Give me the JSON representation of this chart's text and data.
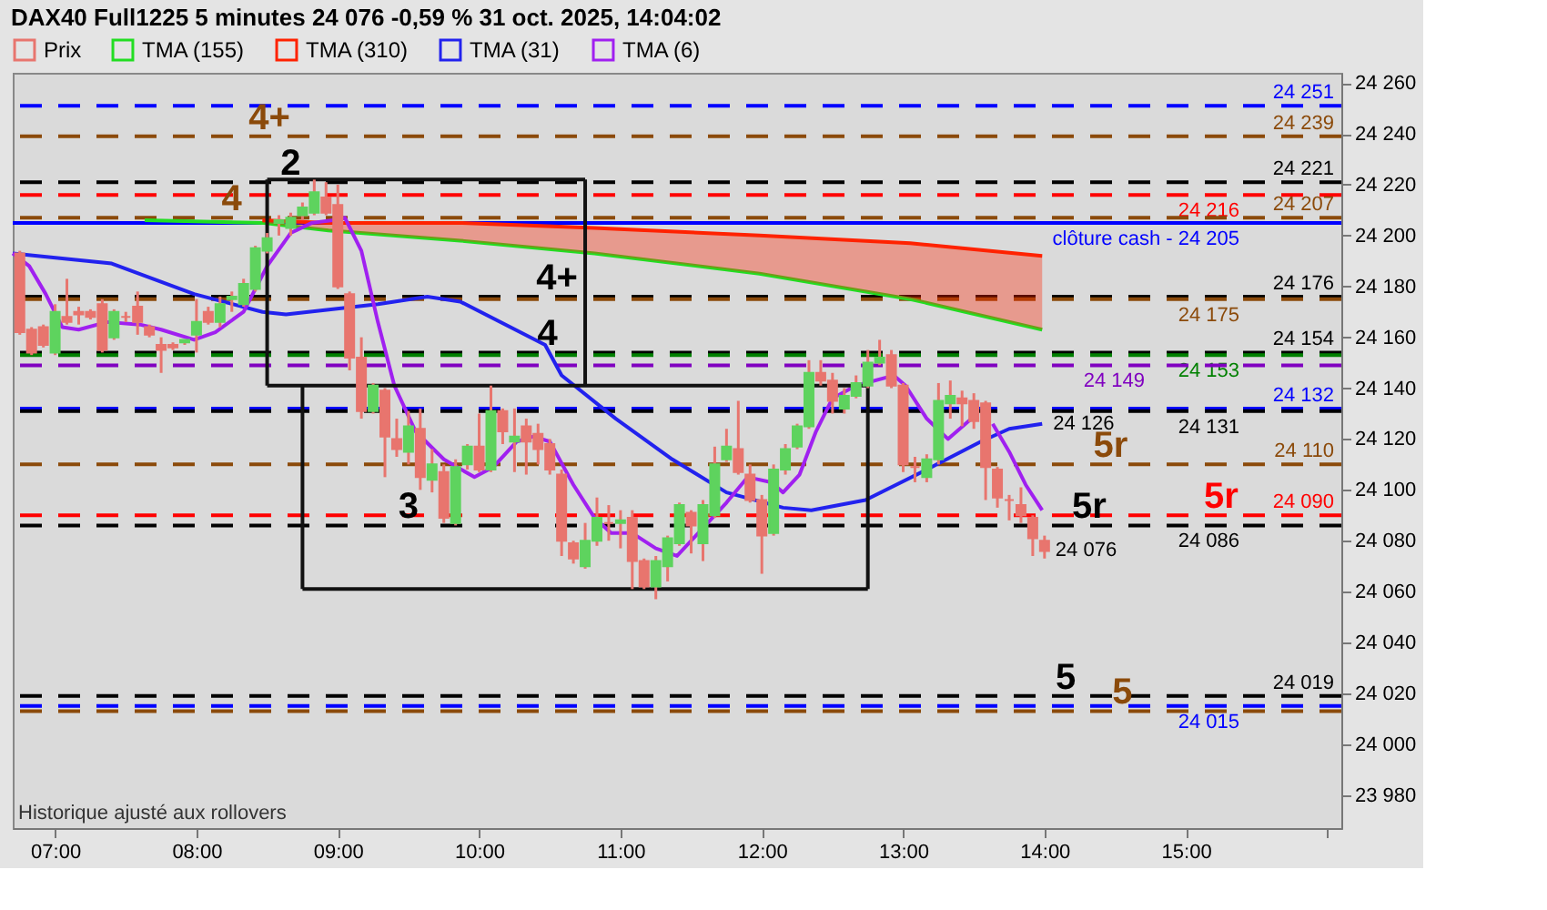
{
  "chart_data": {
    "type": "candlestick",
    "title": "DAX40 Full1225 5 minutes 24 076 -0,59 % 31 oct. 2025, 14:04:02",
    "legend": "top left",
    "xlim": [
      "2025-10-31T06:42",
      "2025-10-31T16:06"
    ],
    "xticks": [
      {
        "value": "2025-10-31T07:00",
        "label": "07:00"
      },
      {
        "value": "2025-10-31T08:00",
        "label": "08:00"
      },
      {
        "value": "2025-10-31T09:00",
        "label": "09:00"
      },
      {
        "value": "2025-10-31T10:00",
        "label": "10:00"
      },
      {
        "value": "2025-10-31T11:00",
        "label": "11:00"
      },
      {
        "value": "2025-10-31T12:00",
        "label": "12:00"
      },
      {
        "value": "2025-10-31T13:00",
        "label": "13:00"
      },
      {
        "value": "2025-10-31T14:00",
        "label": "14:00"
      },
      {
        "value": "2025-10-31T15:00",
        "label": "15:00"
      },
      {
        "value": "2025-10-31T16:00",
        "label": null
      }
    ],
    "ylim": [
      23967,
      24264
    ],
    "yticks": [
      {
        "value": 23980,
        "label": "23 980"
      },
      {
        "value": 24000,
        "label": "24 000"
      },
      {
        "value": 24020,
        "label": "24 020"
      },
      {
        "value": 24040,
        "label": "24 040"
      },
      {
        "value": 24060,
        "label": "24 060"
      },
      {
        "value": 24080,
        "label": "24 080"
      },
      {
        "value": 24100,
        "label": "24 100"
      },
      {
        "value": 24120,
        "label": "24 120"
      },
      {
        "value": 24140,
        "label": "24 140"
      },
      {
        "value": 24160,
        "label": "24 160"
      },
      {
        "value": 24180,
        "label": "24 180"
      },
      {
        "value": 24200,
        "label": "24 200"
      },
      {
        "value": 24220,
        "label": "24 220"
      },
      {
        "value": 24240,
        "label": "24 240"
      },
      {
        "value": 24260,
        "label": "24 260"
      }
    ],
    "series": [
      {
        "name": "TMA (155)",
        "type": "line",
        "color": "#22dd22",
        "x": [
          "2025-10-31T07:38",
          "2025-10-31T08:28",
          "2025-10-31T08:56",
          "2025-10-31T09:52",
          "2025-10-31T10:49",
          "2025-10-31T11:59",
          "2025-10-31T13:03",
          "2025-10-31T13:59"
        ],
        "values": [
          24206,
          24205,
          24202,
          24198,
          24193,
          24185,
          24175,
          24163
        ]
      },
      {
        "name": "TMA (310)",
        "type": "line",
        "color": "#ff2200",
        "x": [
          "2025-10-31T08:28",
          "2025-10-31T08:56",
          "2025-10-31T09:52",
          "2025-10-31T10:49",
          "2025-10-31T11:59",
          "2025-10-31T13:03",
          "2025-10-31T13:59"
        ],
        "values": [
          24206,
          24205,
          24205,
          24203,
          24200,
          24197,
          24192
        ],
        "upper": [
          24206,
          24205,
          24205,
          24203,
          24200,
          24197,
          24192
        ],
        "lower": [
          24205,
          24202,
          24198,
          24193,
          24185,
          24175,
          24163
        ]
      },
      {
        "name": "TMA (31)",
        "type": "line",
        "color": "#2222ee",
        "x": [
          "2025-10-31T06:42",
          "2025-10-31T07:24",
          "2025-10-31T07:59",
          "2025-10-31T08:28",
          "2025-10-31T08:38",
          "2025-10-31T09:17",
          "2025-10-31T09:38",
          "2025-10-31T09:52",
          "2025-10-31T10:28",
          "2025-10-31T10:35",
          "2025-10-31T10:58",
          "2025-10-31T11:22",
          "2025-10-31T11:45",
          "2025-10-31T12:09",
          "2025-10-31T12:21",
          "2025-10-31T12:44",
          "2025-10-31T13:10",
          "2025-10-31T13:33",
          "2025-10-31T13:45",
          "2025-10-31T13:59"
        ],
        "values": [
          24193,
          24189,
          24177,
          24170,
          24169,
          24173,
          24176,
          24174,
          24157,
          24145,
          24128,
          24112,
          24099,
          24093,
          24092,
          24096,
          24108,
          24119,
          24124,
          24126
        ]
      },
      {
        "name": "TMA (6)",
        "type": "line",
        "color": "#a020f0",
        "x": [
          "2025-10-31T06:42",
          "2025-10-31T06:49",
          "2025-10-31T06:56",
          "2025-10-31T07:03",
          "2025-10-31T07:10",
          "2025-10-31T07:22",
          "2025-10-31T07:36",
          "2025-10-31T07:45",
          "2025-10-31T07:59",
          "2025-10-31T08:08",
          "2025-10-31T08:20",
          "2025-10-31T08:30",
          "2025-10-31T08:40",
          "2025-10-31T08:49",
          "2025-10-31T08:58",
          "2025-10-31T09:03",
          "2025-10-31T09:10",
          "2025-10-31T09:17",
          "2025-10-31T09:24",
          "2025-10-31T09:33",
          "2025-10-31T09:45",
          "2025-10-31T09:58",
          "2025-10-31T10:06",
          "2025-10-31T10:16",
          "2025-10-31T10:23",
          "2025-10-31T10:30",
          "2025-10-31T10:40",
          "2025-10-31T10:49",
          "2025-10-31T10:56",
          "2025-10-31T11:05",
          "2025-10-31T11:15",
          "2025-10-31T11:24",
          "2025-10-31T11:33",
          "2025-10-31T11:45",
          "2025-10-31T11:54",
          "2025-10-31T12:04",
          "2025-10-31T12:09",
          "2025-10-31T12:16",
          "2025-10-31T12:23",
          "2025-10-31T12:30",
          "2025-10-31T12:40",
          "2025-10-31T12:56",
          "2025-10-31T13:01",
          "2025-10-31T13:10",
          "2025-10-31T13:19",
          "2025-10-31T13:29",
          "2025-10-31T13:33",
          "2025-10-31T13:38",
          "2025-10-31T13:45",
          "2025-10-31T13:52",
          "2025-10-31T13:59"
        ],
        "values": [
          24193,
          24188,
          24177,
          24164,
          24163,
          24166,
          24165,
          24163,
          24159,
          24162,
          24170,
          24188,
          24201,
          24205,
          24206,
          24207,
          24194,
          24166,
          24141,
          24123,
          24112,
          24105,
          24109,
          24119,
          24121,
          24119,
          24102,
          24089,
          24083,
          24083,
          24077,
          24074,
          24083,
          24095,
          24105,
          24103,
          24099,
          24106,
          24123,
          24136,
          24141,
          24145,
          24141,
          24128,
          24120,
          24128,
          null,
          24126,
          24115,
          24102,
          24092
        ]
      },
      {
        "type": "line",
        "color": "#111111",
        "x": [
          "2025-10-31T08:30",
          "2025-10-31T10:45"
        ],
        "values": [
          24222,
          24222
        ]
      },
      {
        "type": "line",
        "color": "#111111",
        "x": [
          "2025-10-31T08:30",
          "2025-10-31T12:45"
        ],
        "values": [
          24141,
          24141
        ]
      },
      {
        "type": "line",
        "color": "#111111",
        "x": [
          "2025-10-31T08:30",
          "2025-10-31T08:30"
        ],
        "values": [
          24222,
          24141
        ]
      },
      {
        "type": "line",
        "color": "#111111",
        "x": [
          "2025-10-31T10:45",
          "2025-10-31T10:45"
        ],
        "values": [
          24222,
          24141
        ]
      },
      {
        "type": "line",
        "color": "#111111",
        "x": [
          "2025-10-31T08:45",
          "2025-10-31T12:45"
        ],
        "values": [
          24061,
          24061
        ]
      },
      {
        "type": "line",
        "color": "#111111",
        "x": [
          "2025-10-31T08:45",
          "2025-10-31T08:45"
        ],
        "values": [
          24141,
          24061
        ]
      },
      {
        "type": "line",
        "color": "#111111",
        "x": [
          "2025-10-31T12:45",
          "2025-10-31T12:45"
        ],
        "values": [
          24141,
          24061
        ]
      },
      {
        "name": "Prix",
        "color": "#e8756e",
        "x": [
          "2025-10-31T06:45",
          "2025-10-31T06:50",
          "2025-10-31T06:55",
          "2025-10-31T07:00",
          "2025-10-31T07:05",
          "2025-10-31T07:10",
          "2025-10-31T07:15",
          "2025-10-31T07:20",
          "2025-10-31T07:25",
          "2025-10-31T07:30",
          "2025-10-31T07:35",
          "2025-10-31T07:40",
          "2025-10-31T07:45",
          "2025-10-31T07:50",
          "2025-10-31T07:55",
          "2025-10-31T08:00",
          "2025-10-31T08:05",
          "2025-10-31T08:10",
          "2025-10-31T08:15",
          "2025-10-31T08:20",
          "2025-10-31T08:25",
          "2025-10-31T08:30",
          "2025-10-31T08:35",
          "2025-10-31T08:40",
          "2025-10-31T08:45",
          "2025-10-31T08:50",
          "2025-10-31T08:55",
          "2025-10-31T09:00",
          "2025-10-31T09:05",
          "2025-10-31T09:10",
          "2025-10-31T09:15",
          "2025-10-31T09:20",
          "2025-10-31T09:25",
          "2025-10-31T09:30",
          "2025-10-31T09:35",
          "2025-10-31T09:40",
          "2025-10-31T09:45",
          "2025-10-31T09:50",
          "2025-10-31T09:55",
          "2025-10-31T10:00",
          "2025-10-31T10:05",
          "2025-10-31T10:10",
          "2025-10-31T10:15",
          "2025-10-31T10:20",
          "2025-10-31T10:25",
          "2025-10-31T10:30",
          "2025-10-31T10:35",
          "2025-10-31T10:40",
          "2025-10-31T10:45",
          "2025-10-31T10:50",
          "2025-10-31T10:55",
          "2025-10-31T11:00",
          "2025-10-31T11:05",
          "2025-10-31T11:10",
          "2025-10-31T11:15",
          "2025-10-31T11:20",
          "2025-10-31T11:25",
          "2025-10-31T11:30",
          "2025-10-31T11:35",
          "2025-10-31T11:40",
          "2025-10-31T11:45",
          "2025-10-31T11:50",
          "2025-10-31T11:55",
          "2025-10-31T12:00",
          "2025-10-31T12:05",
          "2025-10-31T12:10",
          "2025-10-31T12:15",
          "2025-10-31T12:20",
          "2025-10-31T12:25",
          "2025-10-31T12:30",
          "2025-10-31T12:35",
          "2025-10-31T12:40",
          "2025-10-31T12:45",
          "2025-10-31T12:50",
          "2025-10-31T12:55",
          "2025-10-31T13:00",
          "2025-10-31T13:05",
          "2025-10-31T13:10",
          "2025-10-31T13:15",
          "2025-10-31T13:20",
          "2025-10-31T13:25",
          "2025-10-31T13:30",
          "2025-10-31T13:35",
          "2025-10-31T13:40",
          "2025-10-31T13:45",
          "2025-10-31T13:50",
          "2025-10-31T13:55",
          "2025-10-31T14:00"
        ],
        "ohlc": [
          [
            24193,
            24194,
            24161,
            24162
          ],
          [
            24163,
            24164,
            24153,
            24154
          ],
          [
            24164,
            24165,
            24156,
            24157
          ],
          [
            24154,
            24173,
            24153,
            24170
          ],
          [
            24168,
            24183,
            24165,
            24166
          ],
          [
            24170,
            24172,
            24165,
            24169
          ],
          [
            24170,
            24171,
            24167,
            24168
          ],
          [
            24173,
            24175,
            24154,
            24155
          ],
          [
            24160,
            24171,
            24159,
            24170
          ],
          [
            24168,
            24170,
            24166,
            24168
          ],
          [
            24172,
            24178,
            24161,
            24166
          ],
          [
            24164,
            24165,
            24160,
            24161
          ],
          [
            24157,
            24160,
            24146,
            24155
          ],
          [
            24157,
            24158,
            24155,
            24156
          ],
          [
            24158,
            24159,
            24157,
            24159
          ],
          [
            24161,
            24175,
            24154,
            24166
          ],
          [
            24170,
            24172,
            24165,
            24166
          ],
          [
            24166,
            24176,
            24164,
            24173
          ],
          [
            24175,
            24178,
            24170,
            24176
          ],
          [
            24173,
            24183,
            24172,
            24181
          ],
          [
            24179,
            24196,
            24178,
            24195
          ],
          [
            24194,
            24201,
            24193,
            24199
          ],
          [
            24205,
            24208,
            24200,
            24206
          ],
          [
            24203,
            24209,
            24200,
            24207
          ],
          [
            24208,
            24213,
            24206,
            24211
          ],
          [
            24209,
            24222,
            24208,
            24217
          ],
          [
            24215,
            24221,
            24208,
            24209
          ],
          [
            24212,
            24220,
            24179,
            24180
          ],
          [
            24177,
            24178,
            24147,
            24152
          ],
          [
            24152,
            24160,
            24128,
            24131
          ],
          [
            24131,
            24142,
            24130,
            24141
          ],
          [
            24139,
            24140,
            24105,
            24121
          ],
          [
            24120,
            24128,
            24113,
            24116
          ],
          [
            24115,
            24131,
            24110,
            24125
          ],
          [
            24124,
            24132,
            24100,
            24105
          ],
          [
            24104,
            24116,
            24099,
            24110
          ],
          [
            24107,
            24110,
            24087,
            24089
          ],
          [
            24087,
            24112,
            24086,
            24109
          ],
          [
            24110,
            24118,
            24108,
            24117
          ],
          [
            24117,
            24130,
            24107,
            24108
          ],
          [
            24108,
            24141,
            24107,
            24131
          ],
          [
            24131,
            24132,
            24118,
            24123
          ],
          [
            24119,
            24132,
            24107,
            24121
          ],
          [
            24125,
            24128,
            24106,
            24119
          ],
          [
            24122,
            24126,
            24110,
            24116
          ],
          [
            24118,
            24120,
            24106,
            24108
          ],
          [
            24106,
            24108,
            24074,
            24080
          ],
          [
            24079,
            24080,
            24071,
            24073
          ],
          [
            24070,
            24087,
            24069,
            24080
          ],
          [
            24080,
            24097,
            24078,
            24089
          ],
          [
            24087,
            24094,
            24080,
            24087
          ],
          [
            24087,
            24092,
            24077,
            24088
          ],
          [
            24089,
            24092,
            24061,
            24072
          ],
          [
            24072,
            24073,
            24061,
            24062
          ],
          [
            24062,
            24074,
            24057,
            24072
          ],
          [
            24070,
            24082,
            24064,
            24081
          ],
          [
            24079,
            24095,
            24078,
            24094
          ],
          [
            24091,
            24092,
            24075,
            24086
          ],
          [
            24079,
            24096,
            24072,
            24094
          ],
          [
            24090,
            24117,
            24089,
            24110
          ],
          [
            24112,
            24124,
            24111,
            24117
          ],
          [
            24116,
            24135,
            24106,
            24107
          ],
          [
            24106,
            24110,
            24095,
            24096
          ],
          [
            24096,
            24098,
            24067,
            24082
          ],
          [
            24083,
            24110,
            24082,
            24108
          ],
          [
            24108,
            24118,
            24106,
            24116
          ],
          [
            24117,
            24126,
            24116,
            24125
          ],
          [
            24125,
            24151,
            24124,
            24146
          ],
          [
            24146,
            24151,
            24141,
            24143
          ],
          [
            24143,
            24146,
            24130,
            24135
          ],
          [
            24132,
            24140,
            24130,
            24137
          ],
          [
            24137,
            24145,
            24136,
            24142
          ],
          [
            24141,
            24155,
            24140,
            24150
          ],
          [
            24150,
            24159,
            24149,
            24152
          ],
          [
            24153,
            24155,
            24140,
            24141
          ],
          [
            24141,
            24142,
            24107,
            24110
          ],
          [
            24109,
            24113,
            24103,
            24109
          ],
          [
            24105,
            24114,
            24103,
            24112
          ],
          [
            24112,
            24142,
            24110,
            24135
          ],
          [
            24134,
            24143,
            24128,
            24137
          ],
          [
            24136,
            24139,
            24125,
            24134
          ],
          [
            24135,
            24138,
            24124,
            24127
          ],
          [
            24134,
            24135,
            24096,
            24109
          ],
          [
            24108,
            24109,
            24093,
            24097
          ],
          [
            24096,
            24098,
            24088,
            24096
          ],
          [
            24094,
            24101,
            24087,
            24090
          ],
          [
            24089,
            24090,
            24074,
            24081
          ],
          [
            24080,
            24082,
            24073,
            24076
          ]
        ],
        "colors": [
          "#e8756e",
          "#e8756e",
          "#e8756e",
          "#5ed35e",
          "#e8756e",
          "#e8756e",
          "#e8756e",
          "#e8756e",
          "#5ed35e",
          "#e8756e",
          "#e8756e",
          "#e8756e",
          "#e8756e",
          "#e8756e",
          "#5ed35e",
          "#5ed35e",
          "#e8756e",
          "#5ed35e",
          "#5ed35e",
          "#5ed35e",
          "#5ed35e",
          "#5ed35e",
          "#5ed35e",
          "#5ed35e",
          "#5ed35e",
          "#5ed35e",
          "#e8756e",
          "#e8756e",
          "#e8756e",
          "#e8756e",
          "#5ed35e",
          "#e8756e",
          "#e8756e",
          "#5ed35e",
          "#e8756e",
          "#5ed35e",
          "#e8756e",
          "#5ed35e",
          "#5ed35e",
          "#e8756e",
          "#5ed35e",
          "#e8756e",
          "#5ed35e",
          "#e8756e",
          "#e8756e",
          "#e8756e",
          "#e8756e",
          "#e8756e",
          "#5ed35e",
          "#5ed35e",
          "#e8756e",
          "#5ed35e",
          "#e8756e",
          "#e8756e",
          "#5ed35e",
          "#5ed35e",
          "#5ed35e",
          "#e8756e",
          "#5ed35e",
          "#5ed35e",
          "#5ed35e",
          "#e8756e",
          "#e8756e",
          "#e8756e",
          "#5ed35e",
          "#5ed35e",
          "#5ed35e",
          "#5ed35e",
          "#e8756e",
          "#e8756e",
          "#5ed35e",
          "#5ed35e",
          "#5ed35e",
          "#5ed35e",
          "#e8756e",
          "#e8756e",
          "#e8756e",
          "#5ed35e",
          "#5ed35e",
          "#5ed35e",
          "#e8756e",
          "#e8756e",
          "#e8756e",
          "#e8756e",
          "#e8756e",
          "#e8756e",
          "#e8756e",
          "#e8756e"
        ]
      }
    ],
    "ref_lines": [
      {
        "axis": "y",
        "value": 24251,
        "label": "24 251",
        "color": "#0000ff",
        "line_style": "dashed"
      },
      {
        "axis": "y",
        "value": 24239,
        "label": "24 239",
        "color": "#8b4a0a",
        "line_style": "dashed"
      },
      {
        "axis": "y",
        "value": 24221,
        "label": "24 221",
        "color": "#000000",
        "line_style": "dashed"
      },
      {
        "axis": "y",
        "value": 24216,
        "label": "24 216",
        "color": "#ff0000",
        "line_style": "dashed"
      },
      {
        "axis": "y",
        "value": 24207,
        "label": "24 207",
        "color": "#8b4a0a",
        "line_style": "dashed"
      },
      {
        "axis": "y",
        "value": 24205,
        "label": "clôture cash -  24 205",
        "color": "#0000ff",
        "line_style": "solid"
      },
      {
        "axis": "y",
        "value": 24176,
        "label": "24 176",
        "color": "#000000",
        "line_style": "dashed"
      },
      {
        "axis": "y",
        "value": 24175,
        "label": "24 175",
        "color": "#8b4a0a",
        "line_style": "dashed"
      },
      {
        "axis": "y",
        "value": 24154,
        "label": "24 154",
        "color": "#000000",
        "line_style": "dashed"
      },
      {
        "axis": "y",
        "value": 24153,
        "label": "24 153",
        "color": "#008000",
        "line_style": "dashed"
      },
      {
        "axis": "y",
        "value": 24149,
        "label": "24 149",
        "color": "#8000c0",
        "line_style": "dashed"
      },
      {
        "axis": "y",
        "value": 24132,
        "label": "24 132",
        "color": "#0000ff",
        "line_style": "dashed"
      },
      {
        "axis": "y",
        "value": 24131,
        "label": "24 131",
        "color": "#000000",
        "line_style": "dashed"
      },
      {
        "axis": "y",
        "value": 24110,
        "label": "24 110",
        "color": "#8b4a0a",
        "line_style": "dashed"
      },
      {
        "axis": "y",
        "value": 24090,
        "label": "24 090",
        "color": "#ff0000",
        "line_style": "dashed"
      },
      {
        "axis": "y",
        "value": 24086,
        "label": "24 086",
        "color": "#000000",
        "line_style": "dashed"
      },
      {
        "axis": "y",
        "value": 24019,
        "label": "24 019",
        "color": "#000000",
        "line_style": "dashed"
      },
      {
        "axis": "y",
        "value": 24015,
        "label": "24 015",
        "color": "#0000ff",
        "line_style": "dashed"
      },
      {
        "axis": "y",
        "value": 24013,
        "label": null,
        "color": "#8b4a0a",
        "line_style": "dashed"
      }
    ],
    "annotations": [
      {
        "text": "4+",
        "x": "2025-10-31T08:31",
        "y": 24239
      },
      {
        "text": "2",
        "x": "2025-10-31T08:40",
        "y": 24221
      },
      {
        "text": "4",
        "x": "2025-10-31T08:15",
        "y": 24207
      },
      {
        "text": "4+",
        "x": "2025-10-31T10:33",
        "y": 24176
      },
      {
        "text": "4",
        "x": "2025-10-31T10:29",
        "y": 24154
      },
      {
        "text": "3",
        "x": "2025-10-31T09:30",
        "y": 24086
      },
      {
        "text": "5r",
        "x": "2025-10-31T14:28",
        "y": 24110
      },
      {
        "text": "5r",
        "x": "2025-10-31T14:19",
        "y": 24086
      },
      {
        "text": "5r",
        "x": "2025-10-31T15:15",
        "y": 24090
      },
      {
        "text": "5",
        "x": "2025-10-31T14:09",
        "y": 24019
      },
      {
        "text": "5",
        "x": "2025-10-31T14:33",
        "y": 24013
      },
      {
        "text": "24 126",
        "x": "2025-10-31T13:59",
        "y": 24126
      },
      {
        "text": "24 076",
        "x": "2025-10-31T14:00",
        "y": 24076
      },
      "Historique ajusté aux rollovers"
    ]
  }
}
